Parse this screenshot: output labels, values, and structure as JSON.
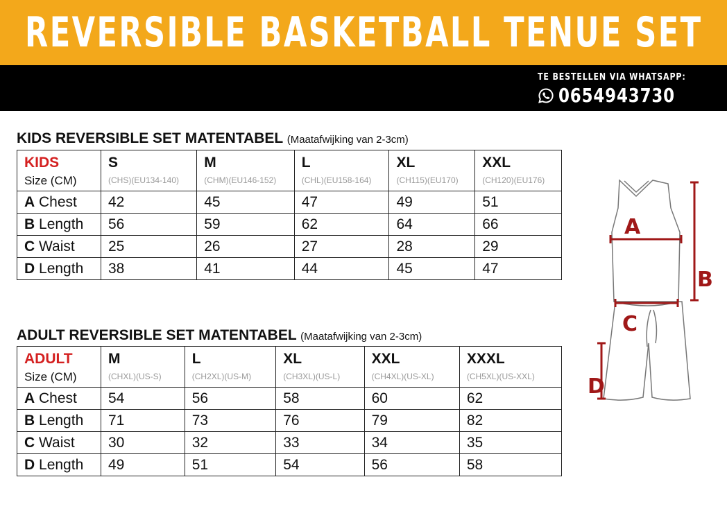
{
  "banner": {
    "title": "REVERSIBLE BASKETBALL TENUE SET",
    "order_label": "TE BESTELLEN VIA WHATSAPP:",
    "phone": "0654943730",
    "icon": "whatsapp-icon",
    "color": "#f3a81b"
  },
  "kids": {
    "title": "KIDS REVERSIBLE SET MATENTABEL",
    "note": "(Maatafwijking van 2-3cm)",
    "category": "KIDS",
    "unit": "Size (CM)",
    "sizes": [
      {
        "size": "S",
        "code": "(CHS)(EU134-140)"
      },
      {
        "size": "M",
        "code": "(CHM)(EU146-152)"
      },
      {
        "size": "L",
        "code": "(CHL)(EU158-164)"
      },
      {
        "size": "XL",
        "code": "(CH115)(EU170)"
      },
      {
        "size": "XXL",
        "code": "(CH120)(EU176)"
      }
    ],
    "rows": [
      {
        "letter": "A",
        "label": "Chest",
        "values": [
          "42",
          "45",
          "47",
          "49",
          "51"
        ]
      },
      {
        "letter": "B",
        "label": "Length",
        "values": [
          "56",
          "59",
          "62",
          "64",
          "66"
        ]
      },
      {
        "letter": "C",
        "label": "Waist",
        "values": [
          "25",
          "26",
          "27",
          "28",
          "29"
        ]
      },
      {
        "letter": "D",
        "label": "Length",
        "values": [
          "38",
          "41",
          "44",
          "45",
          "47"
        ]
      }
    ]
  },
  "adult": {
    "title": "ADULT REVERSIBLE SET MATENTABEL",
    "note": "(Maatafwijking van 2-3cm)",
    "category": "ADULT",
    "unit": "Size (CM)",
    "sizes": [
      {
        "size": "M",
        "code": "(CHXL)(US-S)"
      },
      {
        "size": "L",
        "code": "(CH2XL)(US-M)"
      },
      {
        "size": "XL",
        "code": "(CH3XL)(US-L)"
      },
      {
        "size": "XXL",
        "code": "(CH4XL)(US-XL)"
      },
      {
        "size": "XXXL",
        "code": "(CH5XL)(US-XXL)"
      }
    ],
    "rows": [
      {
        "letter": "A",
        "label": "Chest",
        "values": [
          "54",
          "56",
          "58",
          "60",
          "62"
        ]
      },
      {
        "letter": "B",
        "label": "Length",
        "values": [
          "71",
          "73",
          "76",
          "79",
          "82"
        ]
      },
      {
        "letter": "C",
        "label": "Waist",
        "values": [
          "30",
          "32",
          "33",
          "34",
          "35"
        ]
      },
      {
        "letter": "D",
        "label": "Length",
        "values": [
          "49",
          "51",
          "54",
          "56",
          "58"
        ]
      }
    ]
  },
  "diagram": {
    "labels": [
      "A",
      "B",
      "C",
      "D"
    ],
    "marker_color": "#a01818"
  }
}
